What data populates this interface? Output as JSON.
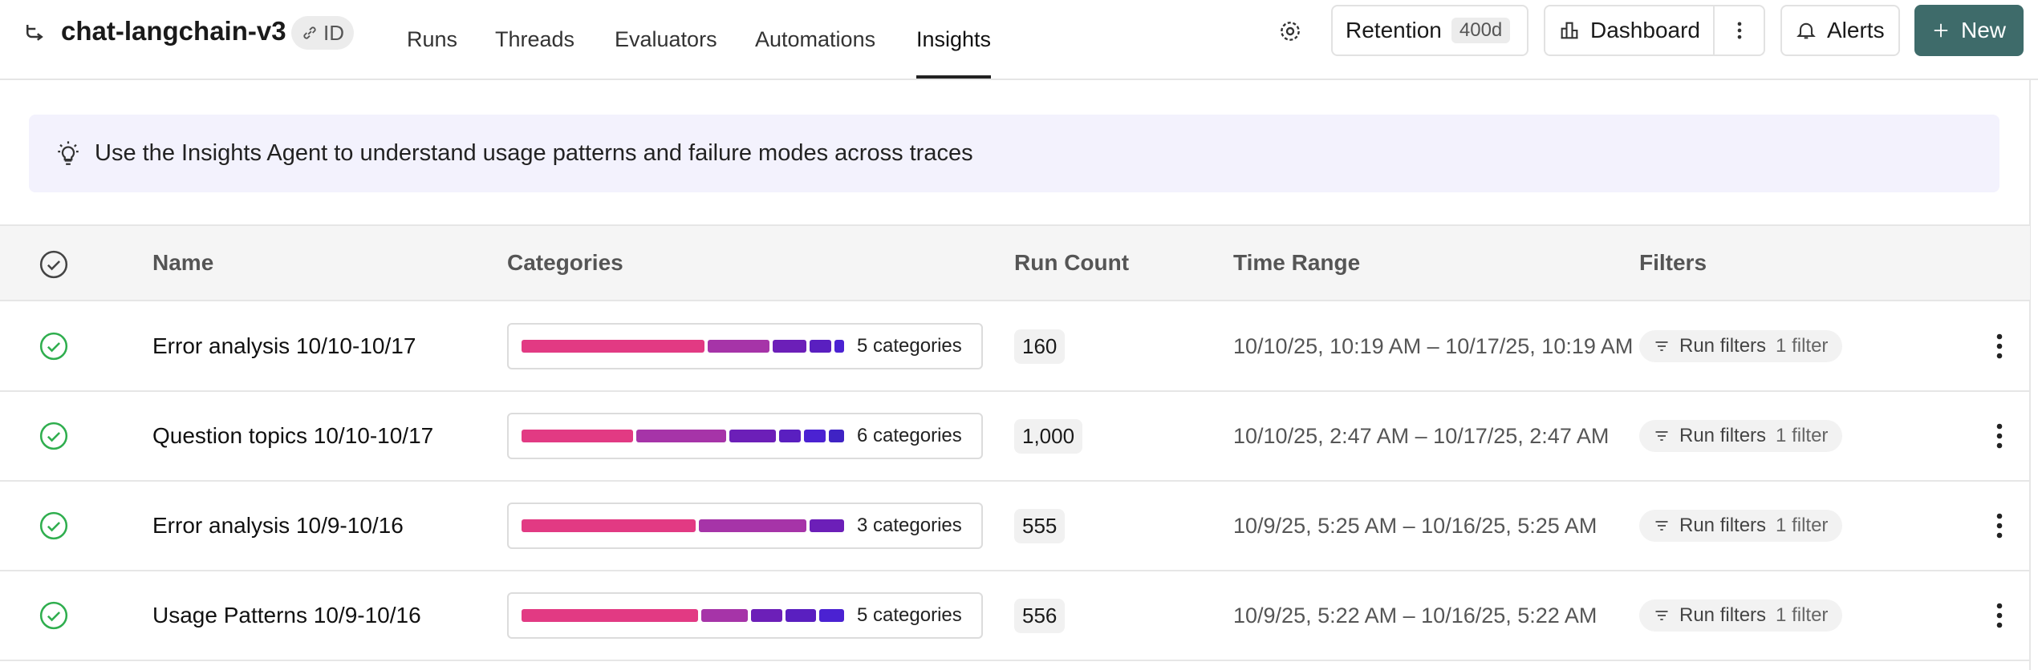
{
  "header": {
    "project": "chat-langchain-v3",
    "id_badge": "ID",
    "tabs": [
      "Runs",
      "Threads",
      "Evaluators",
      "Automations",
      "Insights"
    ],
    "active_tab": "Insights",
    "retention_label": "Retention",
    "retention_value": "400d",
    "dashboard": "Dashboard",
    "alerts": "Alerts",
    "new": "New"
  },
  "banner": "Use the Insights Agent to understand usage patterns and failure modes across traces",
  "table": {
    "columns": [
      "Name",
      "Categories",
      "Run Count",
      "Time Range",
      "Filters"
    ],
    "segment_colors": [
      "#e23a83",
      "#a634a8",
      "#6c1fb8",
      "#5a1fc0",
      "#4b22d2",
      "#3f23c4"
    ],
    "rows": [
      {
        "name": "Error analysis 10/10-10/17",
        "segments": [
          59,
          20,
          11,
          7,
          3
        ],
        "categories": "5 categories",
        "run_count": "160",
        "time_range": "10/10/25, 10:19 AM – 10/17/25, 10:19 AM",
        "filters": "Run filters",
        "filter_count": "1 filter"
      },
      {
        "name": "Question topics 10/10-10/17",
        "segments": [
          36,
          29,
          15,
          7,
          7,
          5
        ],
        "categories": "6 categories",
        "run_count": "1,000",
        "time_range": "10/10/25, 2:47 AM – 10/17/25, 2:47 AM",
        "filters": "Run filters",
        "filter_count": "1 filter"
      },
      {
        "name": "Error analysis 10/9-10/16",
        "segments": [
          55,
          34,
          11
        ],
        "categories": "3 categories",
        "run_count": "555",
        "time_range": "10/9/25, 5:25 AM – 10/16/25, 5:25 AM",
        "filters": "Run filters",
        "filter_count": "1 filter"
      },
      {
        "name": "Usage Patterns 10/9-10/16",
        "segments": [
          57,
          15,
          10,
          10,
          8
        ],
        "categories": "5 categories",
        "run_count": "556",
        "time_range": "10/9/25, 5:22 AM – 10/16/25, 5:22 AM",
        "filters": "Run filters",
        "filter_count": "1 filter"
      }
    ]
  }
}
